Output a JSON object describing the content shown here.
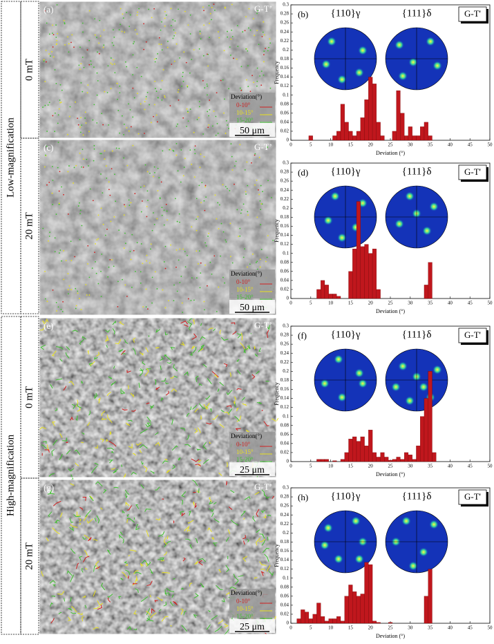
{
  "groups": [
    {
      "label": "Low-magnification",
      "fields": [
        "0 mT",
        "20 mT"
      ]
    },
    {
      "label": "High-magnification",
      "fields": [
        "0 mT",
        "20 mT"
      ]
    }
  ],
  "micrographs": [
    {
      "panel": "(a)",
      "tag": "G-T’",
      "legend_title": "Deviation(°)",
      "legend": [
        "0-10°",
        "10-15°",
        "15-20°"
      ],
      "scale": "50 μm"
    },
    {
      "panel": "(c)",
      "tag": "G-T’",
      "legend_title": "Deviation(°)",
      "legend": [
        "0-10°",
        "10-15°",
        "15-20°"
      ],
      "scale": "50 μm"
    },
    {
      "panel": "(e)",
      "tag": "G-T’",
      "legend_title": "Deviation(°)",
      "legend": [
        "0-10°",
        "10-15°",
        "15-20°"
      ],
      "scale": "25 μm"
    },
    {
      "panel": "(g)",
      "tag": "G-T’",
      "legend_title": "Deviation(°)",
      "legend": [
        "0-10°",
        "10-15°",
        "15-20°"
      ],
      "scale": "25 μm"
    }
  ],
  "chart_data": [
    {
      "type": "bar",
      "panel": "(b)",
      "tag": "G-T'",
      "pole_labels": [
        "{110}γ",
        "{111}δ"
      ],
      "color": "#c0171d",
      "x": [
        5,
        11,
        12,
        13,
        14,
        15,
        16,
        17,
        18,
        19,
        20,
        21,
        22,
        23,
        26,
        27,
        28,
        29,
        30,
        31,
        32,
        33,
        34,
        35
      ],
      "values": [
        0.01,
        0.01,
        0.02,
        0.08,
        0.04,
        0.02,
        0.01,
        0.02,
        0.05,
        0.09,
        0.14,
        0.125,
        0.04,
        0.01,
        0.02,
        0.11,
        0.06,
        0.01,
        0.03,
        0.01,
        0.01,
        0.03,
        0.04,
        0.01
      ],
      "xlim": [
        0,
        50
      ],
      "ylim": [
        0,
        0.3
      ],
      "xticks": [
        0,
        5,
        10,
        15,
        20,
        25,
        30,
        35,
        40,
        45,
        50
      ],
      "yticks": [
        0,
        0.02,
        0.04,
        0.06,
        0.08,
        0.1,
        0.12,
        0.14,
        0.16,
        0.18,
        0.2,
        0.22,
        0.24,
        0.26,
        0.28,
        0.3
      ],
      "xlabel": "Deviation (°)",
      "ylabel": "Frequency"
    },
    {
      "type": "bar",
      "panel": "(d)",
      "tag": "G-T'",
      "pole_labels": [
        "{110}γ",
        "{111}δ"
      ],
      "color": "#c0171d",
      "x": [
        7,
        8,
        9,
        10,
        11,
        12,
        15,
        16,
        17,
        18,
        19,
        20,
        21,
        22,
        34,
        35
      ],
      "values": [
        0.02,
        0.04,
        0.03,
        0.01,
        0.01,
        0.005,
        0.06,
        0.11,
        0.215,
        0.115,
        0.12,
        0.1,
        0.11,
        0.02,
        0.03,
        0.08
      ],
      "xlim": [
        0,
        50
      ],
      "ylim": [
        0,
        0.3
      ],
      "xticks": [
        0,
        5,
        10,
        15,
        20,
        25,
        30,
        35,
        40,
        45,
        50
      ],
      "yticks": [
        0,
        0.02,
        0.04,
        0.06,
        0.08,
        0.1,
        0.12,
        0.14,
        0.16,
        0.18,
        0.2,
        0.22,
        0.24,
        0.26,
        0.28,
        0.3
      ],
      "xlabel": "Deviation (°)",
      "ylabel": "Frequency"
    },
    {
      "type": "bar",
      "panel": "(f)",
      "tag": "G-T'",
      "pole_labels": [
        "{110}γ",
        "{111}δ"
      ],
      "color": "#c0171d",
      "x": [
        7,
        8,
        9,
        11,
        13,
        14,
        15,
        16,
        17,
        18,
        19,
        20,
        21,
        22,
        23,
        24,
        25,
        26,
        27,
        28,
        29,
        30,
        31,
        32,
        33,
        34,
        35,
        36
      ],
      "values": [
        0.005,
        0.005,
        0.005,
        0.002,
        0.005,
        0.02,
        0.05,
        0.055,
        0.045,
        0.055,
        0.035,
        0.07,
        0.02,
        0.01,
        0.02,
        0.01,
        0.003,
        0.005,
        0.01,
        0.005,
        0.02,
        0.015,
        0.005,
        0.035,
        0.1,
        0.14,
        0.2,
        0.02
      ],
      "xlim": [
        0,
        50
      ],
      "ylim": [
        0,
        0.3
      ],
      "xticks": [
        0,
        5,
        10,
        15,
        20,
        25,
        30,
        35,
        40,
        45,
        50
      ],
      "yticks": [
        0,
        0.02,
        0.04,
        0.06,
        0.08,
        0.1,
        0.12,
        0.14,
        0.16,
        0.18,
        0.2,
        0.22,
        0.24,
        0.26,
        0.28,
        0.3
      ],
      "xlabel": "Deviation (°)",
      "ylabel": "Frequency"
    },
    {
      "type": "bar",
      "panel": "(h)",
      "tag": "G-T'",
      "pole_labels": [
        "{110}γ",
        "{111}δ"
      ],
      "color": "#c0171d",
      "x": [
        2,
        3,
        4,
        5,
        6,
        7,
        8,
        9,
        10,
        11,
        12,
        13,
        14,
        15,
        16,
        17,
        18,
        19,
        20,
        21,
        22,
        25,
        34,
        35
      ],
      "values": [
        0.01,
        0.03,
        0.025,
        0.01,
        0.02,
        0.045,
        0.015,
        0.005,
        0.01,
        0.01,
        0.015,
        0.005,
        0.06,
        0.085,
        0.07,
        0.06,
        0.065,
        0.135,
        0.13,
        0.005,
        0.002,
        0.002,
        0.06,
        0.12
      ],
      "xlim": [
        0,
        50
      ],
      "ylim": [
        0,
        0.3
      ],
      "xticks": [
        0,
        5,
        10,
        15,
        20,
        25,
        30,
        35,
        40,
        45,
        50
      ],
      "yticks": [
        0,
        0.02,
        0.04,
        0.06,
        0.08,
        0.1,
        0.12,
        0.14,
        0.16,
        0.18,
        0.2,
        0.22,
        0.24,
        0.26,
        0.28,
        0.3
      ],
      "xlabel": "Deviation (°)",
      "ylabel": "Frequency"
    }
  ]
}
